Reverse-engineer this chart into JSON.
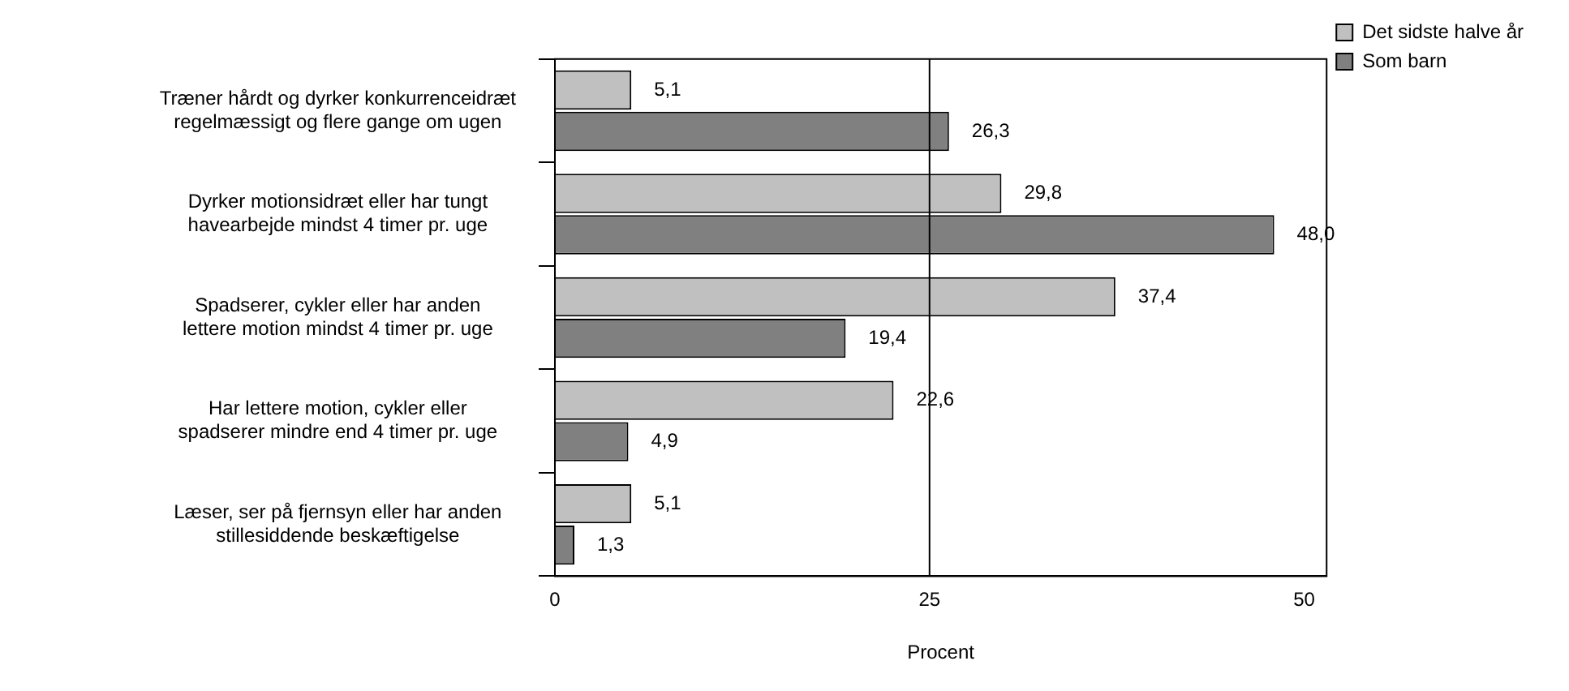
{
  "chart_data": {
    "type": "bar",
    "orientation": "horizontal",
    "xlabel": "Procent",
    "categories": [
      "Træner hårdt og dyrker konkurrenceidræt regelmæssigt og flere gange om ugen",
      "Dyrker motionsidræt eller har tungt havearbejde mindst 4 timer pr. uge",
      "Spadserer, cykler eller har anden lettere motion mindst 4 timer pr. uge",
      "Har lettere motion, cykler eller spadserer mindre end 4 timer pr. uge",
      "Læser, ser på fjernsyn eller har anden stillesiddende beskæftigelse"
    ],
    "series": [
      {
        "name": "Det sidste halve år",
        "color": "#c0c0c0",
        "values": [
          5.1,
          29.8,
          37.4,
          22.6,
          5.1
        ],
        "value_labels": [
          "5,1",
          "29,8",
          "37,4",
          "22,6",
          "5,1"
        ]
      },
      {
        "name": "Som barn",
        "color": "#808080",
        "values": [
          26.3,
          48.0,
          19.4,
          4.9,
          1.3
        ],
        "value_labels": [
          "26,3",
          "48,0",
          "19,4",
          "4,9",
          "1,3"
        ]
      }
    ],
    "xlim": [
      0,
      51.5
    ],
    "xticks": [
      0,
      25,
      50
    ],
    "ref_lines": [
      {
        "axis": "x",
        "value": 25,
        "color": "#000000"
      }
    ],
    "grid": false,
    "legend": "top right"
  }
}
